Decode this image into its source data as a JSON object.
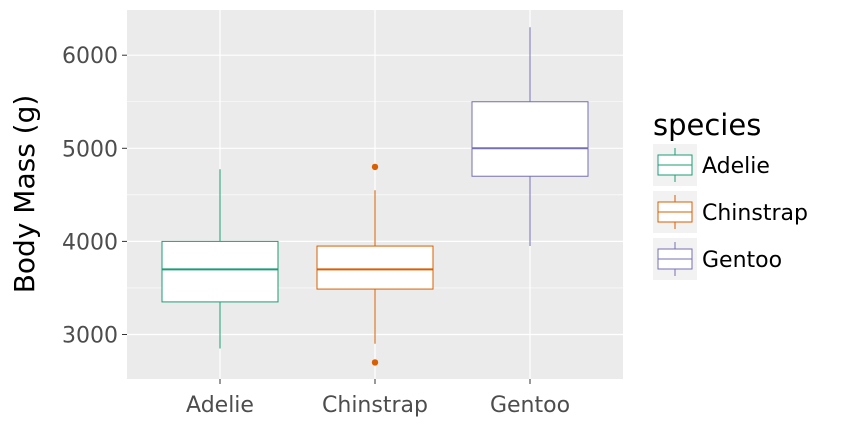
{
  "chart_data": {
    "type": "box",
    "title": "",
    "xlabel": "",
    "ylabel": "Body Mass (g)",
    "ylim": [
      2500,
      6500
    ],
    "yticks": [
      3000,
      4000,
      5000,
      6000
    ],
    "grid": true,
    "legend_title": "species",
    "legend_position": "right",
    "categories": [
      "Adelie",
      "Chinstrap",
      "Gentoo"
    ],
    "series": [
      {
        "name": "Adelie",
        "color": "#1b9e77",
        "whisker_low": 2850,
        "q1": 3350,
        "median": 3700,
        "q3": 4000,
        "whisker_high": 4775,
        "outliers": []
      },
      {
        "name": "Chinstrap",
        "color": "#d95f02",
        "whisker_low": 2900,
        "q1": 3488,
        "median": 3700,
        "q3": 3950,
        "whisker_high": 4550,
        "outliers": [
          4800,
          2700
        ]
      },
      {
        "name": "Gentoo",
        "color": "#7570b3",
        "whisker_low": 3950,
        "q1": 4700,
        "median": 5000,
        "q3": 5500,
        "whisker_high": 6300,
        "outliers": []
      }
    ]
  }
}
